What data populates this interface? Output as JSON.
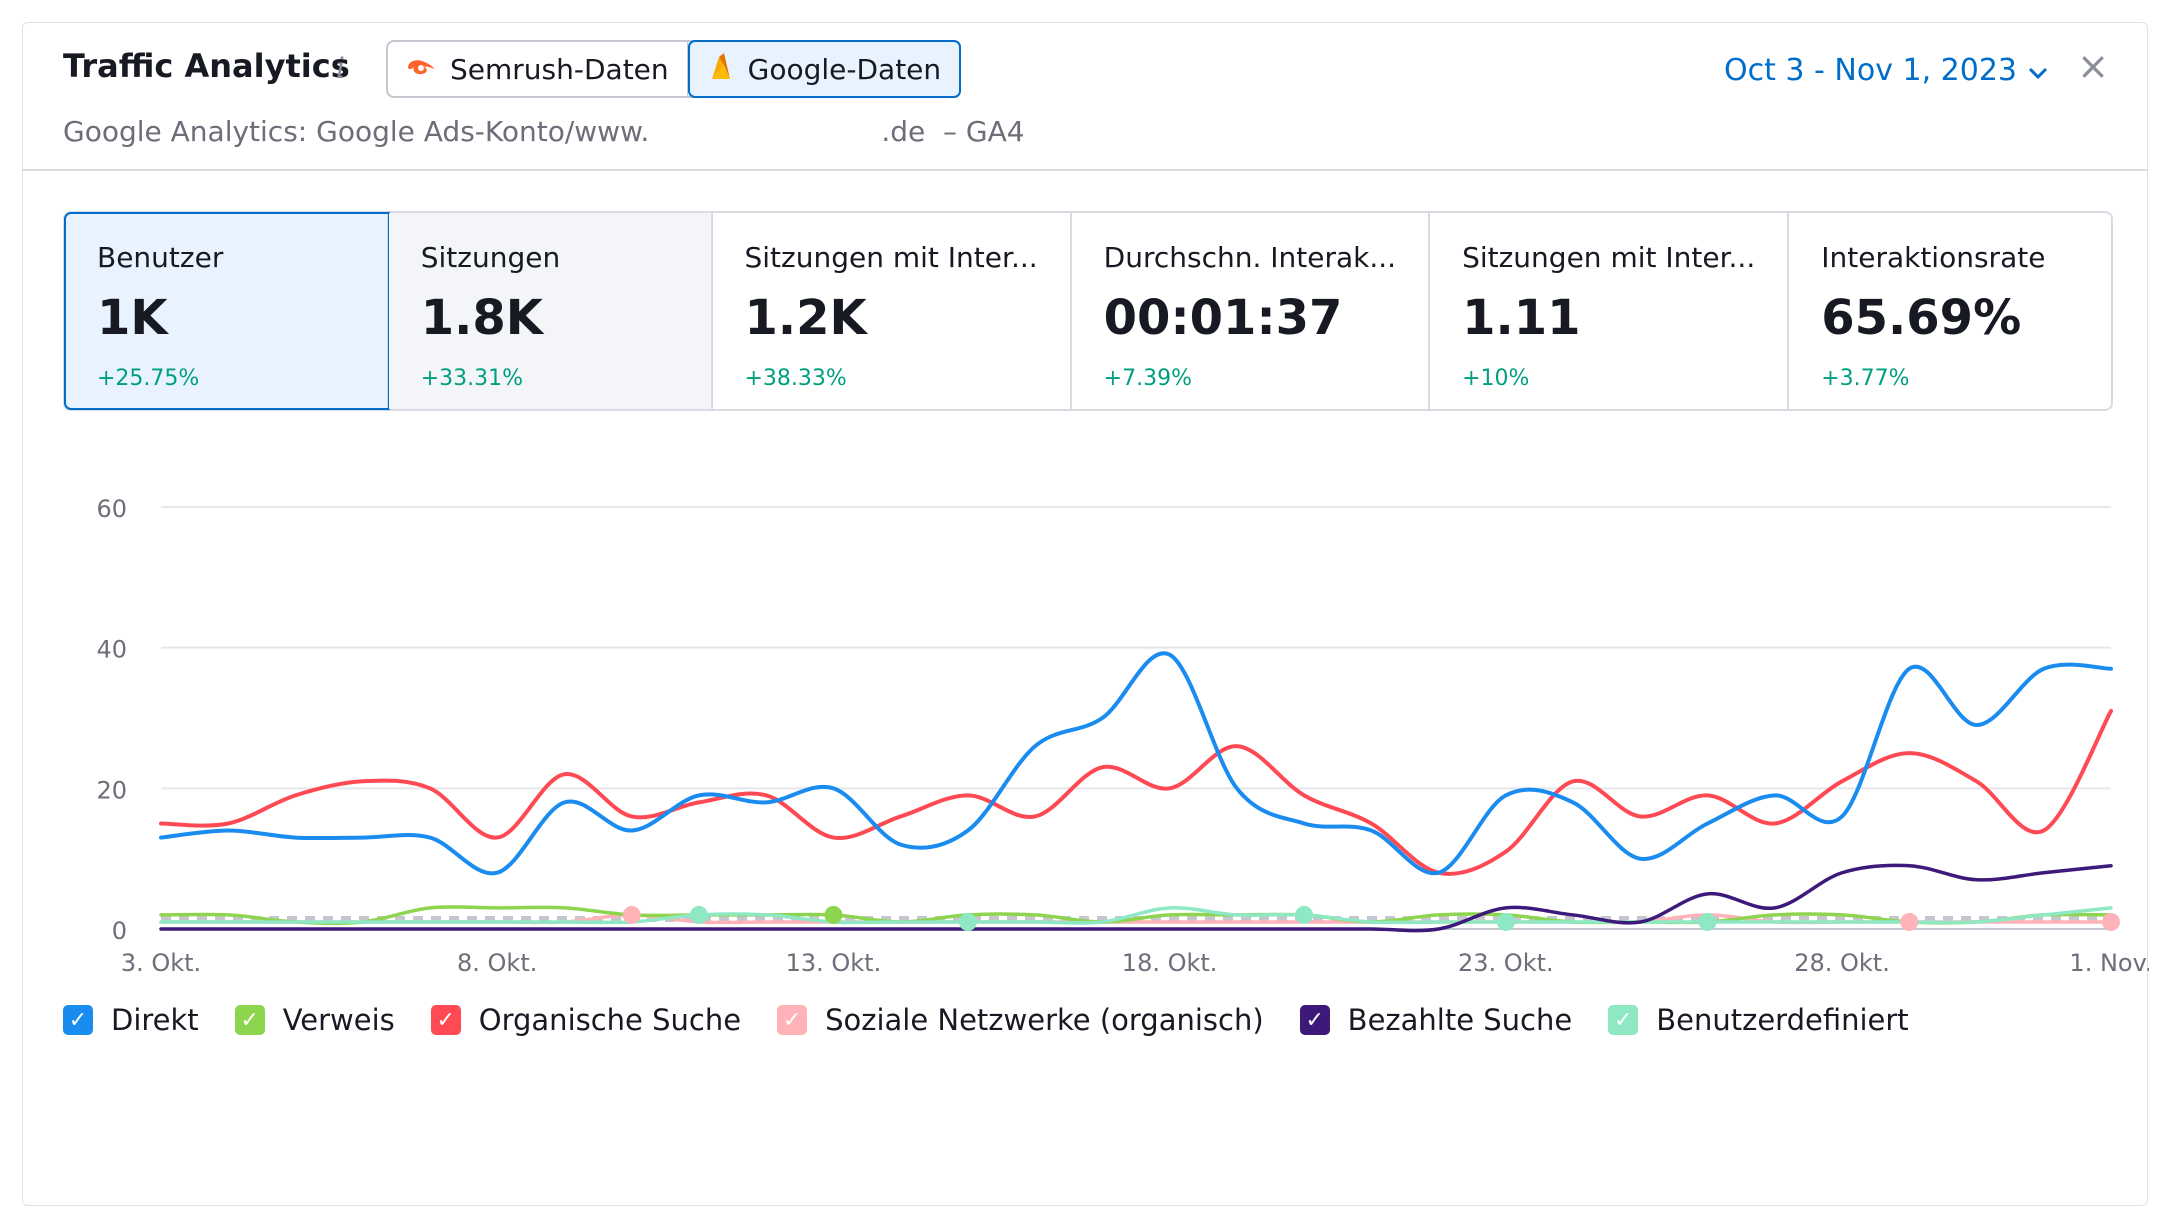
{
  "header": {
    "title": "Traffic Analytics",
    "info_icon": "i",
    "sources": [
      {
        "label": "Semrush-Daten",
        "icon": "semrush-icon",
        "selected": false
      },
      {
        "label": "Google-Daten",
        "icon": "google-analytics-icon",
        "selected": true
      }
    ],
    "subtitle_left": "Google Analytics: Google Ads-Konto/www.",
    "subtitle_right": ".de  – GA4",
    "date_range": "Oct 3 - Nov 1, 2023",
    "close": "×"
  },
  "metrics": [
    {
      "label": "Benutzer",
      "value": "1K",
      "delta": "+25.75%"
    },
    {
      "label": "Sitzungen",
      "value": "1.8K",
      "delta": "+33.31%"
    },
    {
      "label": "Sitzungen mit Inter...",
      "value": "1.2K",
      "delta": "+38.33%"
    },
    {
      "label": "Durchschn. Interak...",
      "value": "00:01:37",
      "delta": "+7.39%"
    },
    {
      "label": "Sitzungen mit Inter...",
      "value": "1.11",
      "delta": "+10%"
    },
    {
      "label": "Interaktionsrate",
      "value": "65.69%",
      "delta": "+3.77%"
    }
  ],
  "chart_data": {
    "type": "line",
    "ylim": [
      0,
      60
    ],
    "yticks": [
      "0",
      "20",
      "40",
      "60"
    ],
    "x_tick_labels": [
      "3. Okt.",
      "8. Okt.",
      "13. Okt.",
      "18. Okt.",
      "23. Okt.",
      "28. Okt.",
      "1. Nov."
    ],
    "x_tick_positions": [
      0,
      5,
      10,
      15,
      20,
      25,
      29
    ],
    "grid": true,
    "series": [
      {
        "name": "Direkt",
        "color": "#1a8cf0",
        "values": [
          13,
          14,
          13,
          13,
          13,
          8,
          18,
          14,
          19,
          18,
          20,
          12,
          14,
          26,
          30,
          39,
          20,
          15,
          14,
          8,
          19,
          18,
          10,
          15,
          19,
          16,
          37,
          29,
          37,
          37
        ]
      },
      {
        "name": "Verweis",
        "color": "#8ed54f",
        "values": [
          2,
          2,
          1,
          1,
          3,
          3,
          3,
          2,
          2,
          2,
          2,
          1,
          2,
          2,
          1,
          2,
          2,
          2,
          1,
          2,
          2,
          1,
          1,
          1,
          2,
          2,
          1,
          1,
          2,
          2
        ]
      },
      {
        "name": "Organische Suche",
        "color": "#ff4953",
        "values": [
          15,
          15,
          19,
          21,
          20,
          13,
          22,
          16,
          18,
          19,
          13,
          16,
          19,
          16,
          23,
          20,
          26,
          19,
          15,
          8,
          11,
          21,
          16,
          19,
          15,
          21,
          25,
          21,
          14,
          31
        ]
      },
      {
        "name": "Soziale Netzwerke (organisch)",
        "color": "#ffb3b8",
        "values": [
          1,
          1,
          1,
          1,
          1,
          1,
          1,
          2,
          1,
          1,
          1,
          1,
          1,
          1,
          1,
          1,
          1,
          1,
          1,
          1,
          1,
          1,
          1,
          2,
          1,
          1,
          1,
          1,
          1,
          1
        ]
      },
      {
        "name": "Bezahlte Suche",
        "color": "#3d1a7a",
        "values": [
          0,
          0,
          0,
          0,
          0,
          0,
          0,
          0,
          0,
          0,
          0,
          0,
          0,
          0,
          0,
          0,
          0,
          0,
          0,
          0,
          3,
          2,
          1,
          5,
          3,
          8,
          9,
          7,
          8,
          9
        ]
      },
      {
        "name": "Benutzerdefiniert",
        "color": "#8ee8c4",
        "values": [
          1,
          1,
          1,
          1,
          1,
          1,
          1,
          1,
          2,
          2,
          1,
          1,
          1,
          1,
          1,
          3,
          2,
          2,
          1,
          1,
          1,
          1,
          1,
          1,
          1,
          1,
          1,
          1,
          2,
          3
        ]
      }
    ]
  },
  "legend": [
    {
      "label": "Direkt",
      "color": "#1a8cf0"
    },
    {
      "label": "Verweis",
      "color": "#8ed54f"
    },
    {
      "label": "Organische Suche",
      "color": "#ff4953"
    },
    {
      "label": "Soziale Netzwerke (organisch)",
      "color": "#ffb3b8"
    },
    {
      "label": "Bezahlte Suche",
      "color": "#3d1a7a"
    },
    {
      "label": "Benutzerdefiniert",
      "color": "#8ee8c4"
    }
  ]
}
